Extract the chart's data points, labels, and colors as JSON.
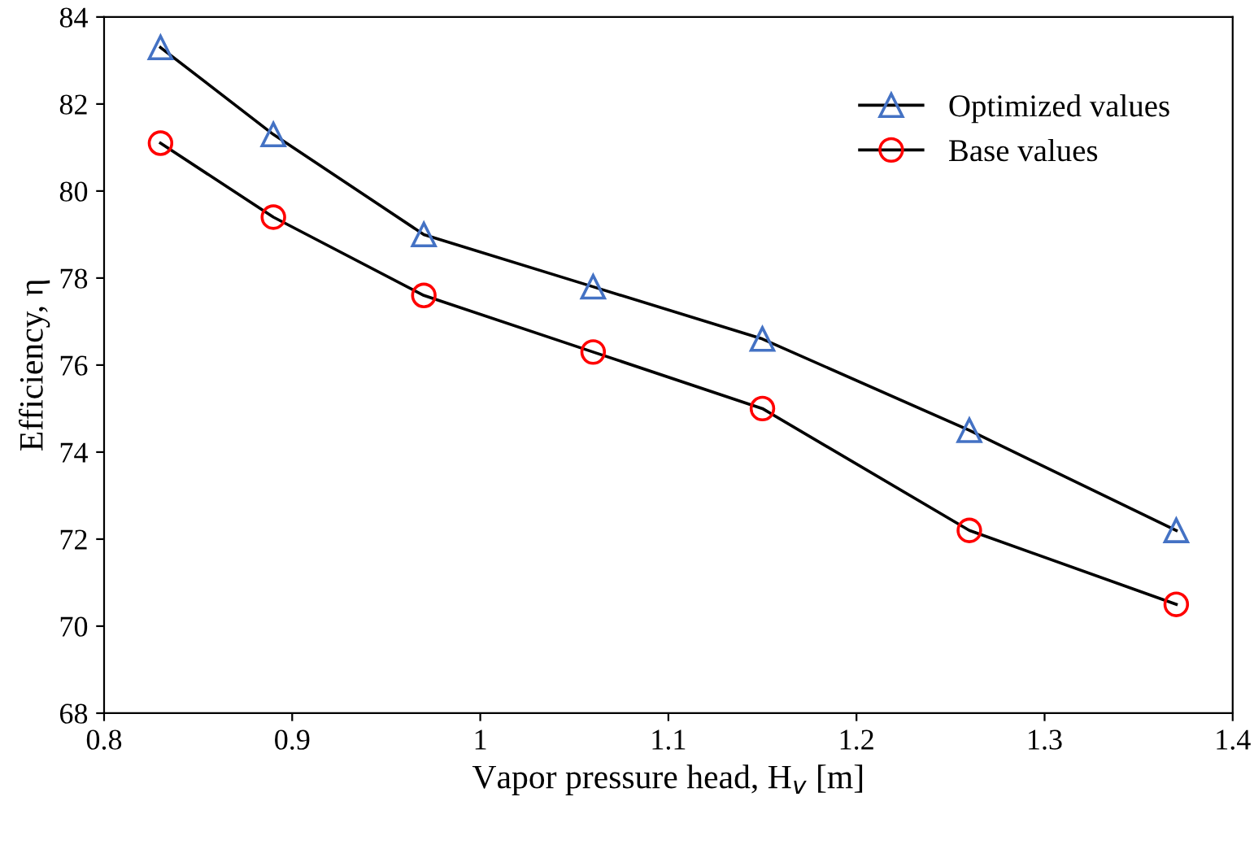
{
  "chart_data": {
    "type": "line",
    "xlabel": "Vapor pressure head, H$_{v}$ [m]",
    "ylabel": "Efficiency, η",
    "x": [
      0.83,
      0.89,
      0.97,
      1.06,
      1.15,
      1.26,
      1.37
    ],
    "series": [
      {
        "name": "Optimized values",
        "color": "#4472c4",
        "marker": "triangle",
        "values": [
          83.3,
          81.3,
          79.0,
          77.8,
          76.6,
          74.5,
          72.2
        ]
      },
      {
        "name": "Base values",
        "color": "#ff0000",
        "marker": "circle",
        "values": [
          81.1,
          79.4,
          77.6,
          76.3,
          75.0,
          72.2,
          70.5
        ]
      }
    ],
    "xlim": [
      0.8,
      1.4
    ],
    "xticks": [
      0.8,
      0.9,
      1,
      1.1,
      1.2,
      1.3,
      1.4
    ],
    "ylim": [
      68,
      84
    ],
    "yticks": [
      68,
      70,
      72,
      74,
      76,
      78,
      80,
      82,
      84
    ],
    "grid": false,
    "legend": "top right",
    "line_style": "solid"
  }
}
